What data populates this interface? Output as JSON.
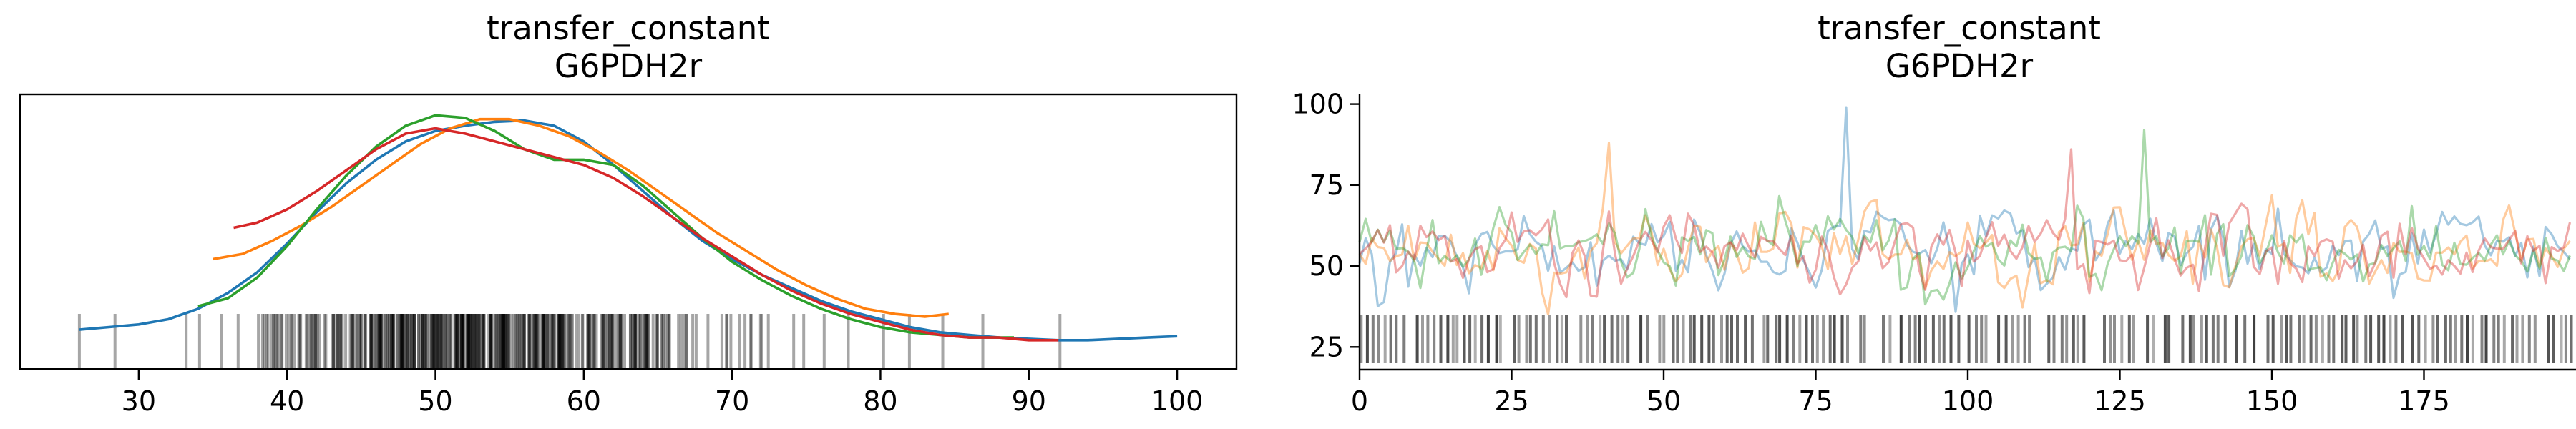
{
  "figure": {
    "background": "#ffffff"
  },
  "chart_data": [
    {
      "type": "line",
      "subtype": "kde-with-rug",
      "title_lines": [
        "transfer_constant",
        "G6PDH2r"
      ],
      "xlim": [
        22,
        104
      ],
      "ylim": [
        0,
        1.05
      ],
      "xticks": [
        30,
        40,
        50,
        60,
        70,
        80,
        90,
        100
      ],
      "y_axis_visible": false,
      "series": [
        {
          "color": "#1f77b4",
          "points": [
            [
              26,
              0.15
            ],
            [
              28,
              0.16
            ],
            [
              30,
              0.17
            ],
            [
              32,
              0.19
            ],
            [
              34,
              0.23
            ],
            [
              36,
              0.29
            ],
            [
              38,
              0.37
            ],
            [
              40,
              0.48
            ],
            [
              42,
              0.6
            ],
            [
              44,
              0.71
            ],
            [
              46,
              0.8
            ],
            [
              48,
              0.87
            ],
            [
              50,
              0.91
            ],
            [
              52,
              0.93
            ],
            [
              54,
              0.945
            ],
            [
              56,
              0.95
            ],
            [
              58,
              0.93
            ],
            [
              60,
              0.87
            ],
            [
              62,
              0.78
            ],
            [
              64,
              0.68
            ],
            [
              66,
              0.58
            ],
            [
              68,
              0.49
            ],
            [
              70,
              0.42
            ],
            [
              72,
              0.36
            ],
            [
              74,
              0.31
            ],
            [
              76,
              0.26
            ],
            [
              78,
              0.22
            ],
            [
              80,
              0.19
            ],
            [
              82,
              0.16
            ],
            [
              84,
              0.14
            ],
            [
              86,
              0.13
            ],
            [
              88,
              0.12
            ],
            [
              90,
              0.115
            ],
            [
              92,
              0.11
            ],
            [
              94,
              0.11
            ],
            [
              96,
              0.115
            ],
            [
              98,
              0.12
            ],
            [
              100,
              0.125
            ]
          ]
        },
        {
          "color": "#ff7f0e",
          "points": [
            [
              35,
              0.42
            ],
            [
              37,
              0.44
            ],
            [
              39,
              0.49
            ],
            [
              41,
              0.55
            ],
            [
              43,
              0.62
            ],
            [
              45,
              0.7
            ],
            [
              47,
              0.78
            ],
            [
              49,
              0.86
            ],
            [
              51,
              0.92
            ],
            [
              53,
              0.955
            ],
            [
              55,
              0.955
            ],
            [
              57,
              0.93
            ],
            [
              59,
              0.89
            ],
            [
              61,
              0.83
            ],
            [
              63,
              0.76
            ],
            [
              65,
              0.68
            ],
            [
              67,
              0.6
            ],
            [
              69,
              0.52
            ],
            [
              71,
              0.45
            ],
            [
              73,
              0.38
            ],
            [
              75,
              0.32
            ],
            [
              77,
              0.27
            ],
            [
              79,
              0.23
            ],
            [
              81,
              0.21
            ],
            [
              83,
              0.2
            ],
            [
              84.6,
              0.21
            ]
          ]
        },
        {
          "color": "#2ca02c",
          "points": [
            [
              34,
              0.24
            ],
            [
              36,
              0.27
            ],
            [
              38,
              0.35
            ],
            [
              40,
              0.47
            ],
            [
              42,
              0.61
            ],
            [
              44,
              0.74
            ],
            [
              46,
              0.85
            ],
            [
              48,
              0.93
            ],
            [
              50,
              0.97
            ],
            [
              52,
              0.96
            ],
            [
              54,
              0.91
            ],
            [
              56,
              0.84
            ],
            [
              58,
              0.8
            ],
            [
              60,
              0.8
            ],
            [
              62,
              0.78
            ],
            [
              64,
              0.7
            ],
            [
              66,
              0.6
            ],
            [
              68,
              0.5
            ],
            [
              70,
              0.41
            ],
            [
              72,
              0.34
            ],
            [
              74,
              0.28
            ],
            [
              76,
              0.23
            ],
            [
              78,
              0.19
            ],
            [
              80,
              0.16
            ],
            [
              82,
              0.14
            ],
            [
              84,
              0.13
            ],
            [
              86,
              0.12
            ],
            [
              88,
              0.12
            ],
            [
              89,
              0.12
            ]
          ]
        },
        {
          "color": "#d62728",
          "points": [
            [
              36.4,
              0.54
            ],
            [
              38,
              0.56
            ],
            [
              40,
              0.61
            ],
            [
              42,
              0.68
            ],
            [
              44,
              0.76
            ],
            [
              46,
              0.84
            ],
            [
              48,
              0.9
            ],
            [
              50,
              0.92
            ],
            [
              52,
              0.9
            ],
            [
              54,
              0.87
            ],
            [
              56,
              0.84
            ],
            [
              58,
              0.81
            ],
            [
              60,
              0.78
            ],
            [
              62,
              0.73
            ],
            [
              64,
              0.66
            ],
            [
              66,
              0.58
            ],
            [
              68,
              0.5
            ],
            [
              70,
              0.43
            ],
            [
              72,
              0.36
            ],
            [
              74,
              0.3
            ],
            [
              76,
              0.25
            ],
            [
              78,
              0.21
            ],
            [
              80,
              0.18
            ],
            [
              82,
              0.15
            ],
            [
              84,
              0.13
            ],
            [
              86,
              0.12
            ],
            [
              88,
              0.12
            ],
            [
              90,
              0.11
            ],
            [
              92,
              0.11
            ]
          ]
        }
      ],
      "rug": {
        "color": "#000000",
        "min": 26,
        "max": 92,
        "outliers": [
          26,
          28.4,
          33.2,
          34.1,
          35.6,
          36.7,
          84.2,
          86.9,
          92.1
        ]
      }
    },
    {
      "type": "line",
      "subtype": "trace-with-rug",
      "title_lines": [
        "transfer_constant",
        "G6PDH2r"
      ],
      "xlim": [
        0,
        200
      ],
      "ylim": [
        18,
        103
      ],
      "xticks": [
        0,
        25,
        50,
        75,
        100,
        125,
        150,
        175
      ],
      "yticks": [
        25,
        50,
        75,
        100
      ],
      "n_draws": 200,
      "series": [
        {
          "color": "#1f77b4",
          "opacity": 0.4
        },
        {
          "color": "#ff7f0e",
          "opacity": 0.4
        },
        {
          "color": "#2ca02c",
          "opacity": 0.4
        },
        {
          "color": "#d62728",
          "opacity": 0.4
        }
      ],
      "annotated_peaks": [
        [
          80,
          99
        ],
        [
          41,
          88
        ],
        [
          129,
          92
        ],
        [
          117,
          86
        ]
      ],
      "rug": {
        "color": "#000000",
        "y_top": 35,
        "y_bottom": 20
      }
    }
  ]
}
